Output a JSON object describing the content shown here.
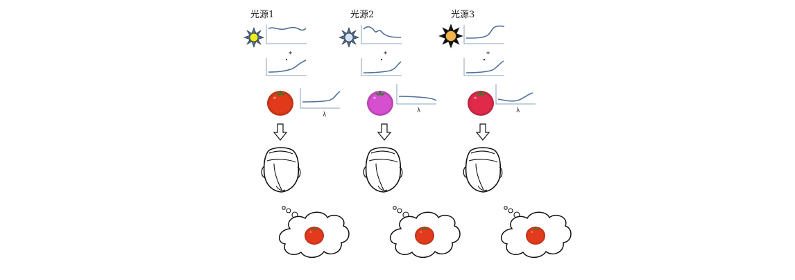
{
  "columns": [
    {
      "title": "光源1",
      "sun_color": "#f2ec1a",
      "tomato_color": "#e03a1a",
      "curve_label": "λ"
    },
    {
      "title": "光源2",
      "sun_color": "#d8e4f4",
      "tomato_color": "#d64fcf",
      "curve_label": "λ"
    },
    {
      "title": "光源3",
      "sun_color": "#f3b449",
      "tomato_color": "#df2a4a",
      "curve_label": "λ"
    }
  ],
  "colors": {
    "sun_rays_1": "#4a6f99",
    "sun_rays_2": "#4a6f99",
    "sun_rays_3": "#111111",
    "curve": "#4f6f9a",
    "perceived_tomato": "#e23a1c",
    "ink": "#111111"
  }
}
